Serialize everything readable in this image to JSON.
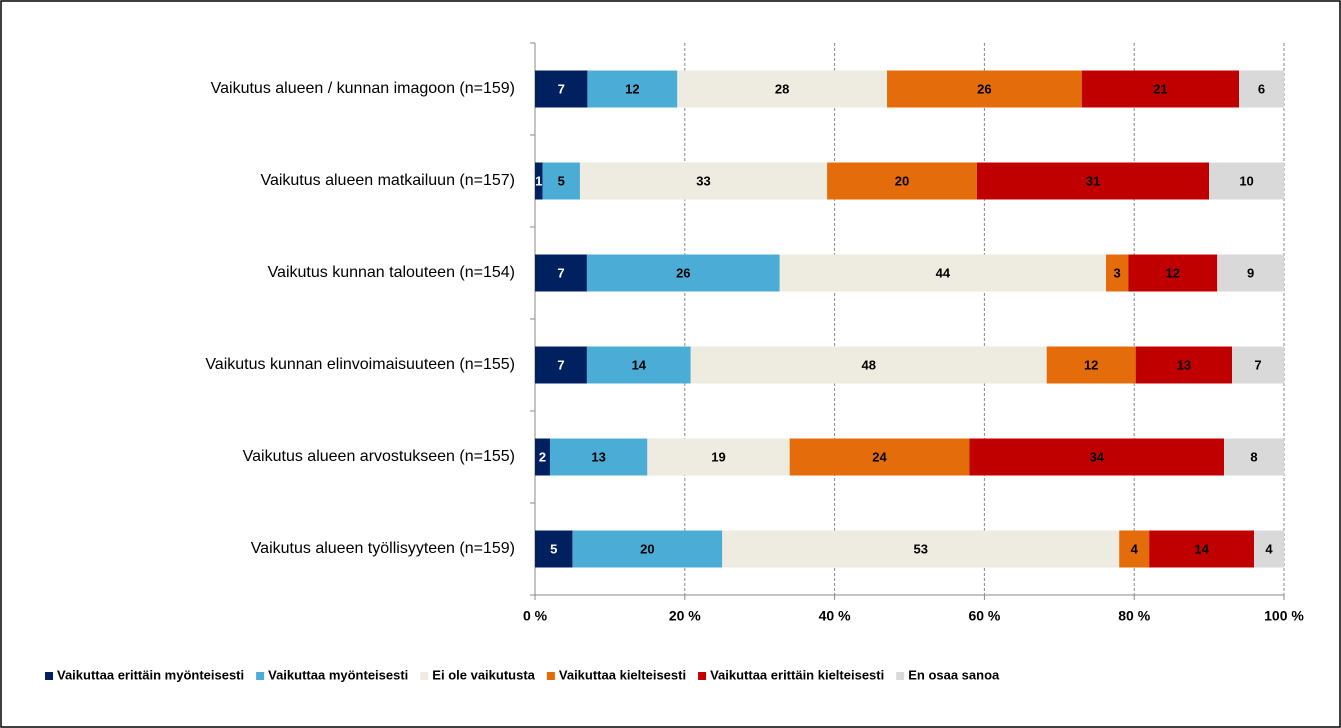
{
  "chart_data": {
    "type": "bar",
    "orientation": "horizontal",
    "stacking": "percent",
    "categories": [
      "Vaikutus alueen / kunnan imagoon (n=159)",
      "Vaikutus alueen matkailuun (n=157)",
      "Vaikutus kunnan talouteen (n=154)",
      "Vaikutus kunnan elinvoimaisuuteen (n=155)",
      "Vaikutus alueen arvostukseen (n=155)",
      "Vaikutus alueen työllisyyteen (n=159)"
    ],
    "series": [
      {
        "name": "Vaikuttaa erittäin myönteisesti",
        "color": "#002060",
        "label_color": "#ffffff",
        "values": [
          7,
          1,
          7,
          7,
          2,
          5
        ]
      },
      {
        "name": "Vaikuttaa myönteisesti",
        "color": "#4bacd6",
        "label_color": "#000000",
        "values": [
          12,
          5,
          26,
          14,
          13,
          20
        ]
      },
      {
        "name": "Ei ole vaikutusta",
        "color": "#eeece1",
        "label_color": "#000000",
        "values": [
          28,
          33,
          44,
          48,
          19,
          53
        ]
      },
      {
        "name": "Vaikuttaa kielteisesti",
        "color": "#e46c0a",
        "label_color": "#000000",
        "values": [
          26,
          20,
          3,
          12,
          24,
          4
        ]
      },
      {
        "name": "Vaikuttaa erittäin kielteisesti",
        "color": "#c00000",
        "label_color": "#000000",
        "values": [
          21,
          31,
          12,
          13,
          34,
          14
        ]
      },
      {
        "name": "En osaa sanoa",
        "color": "#d9d9d9",
        "label_color": "#000000",
        "values": [
          6,
          10,
          9,
          7,
          8,
          4
        ]
      }
    ],
    "xlim": [
      0,
      100
    ],
    "xticks": [
      {
        "value": 0,
        "label": "0 %"
      },
      {
        "value": 20,
        "label": "20 %"
      },
      {
        "value": 40,
        "label": "40 %"
      },
      {
        "value": 60,
        "label": "60 %"
      },
      {
        "value": 80,
        "label": "80 %"
      },
      {
        "value": 100,
        "label": "100 %"
      }
    ],
    "grid": true,
    "legend": "bottom"
  }
}
